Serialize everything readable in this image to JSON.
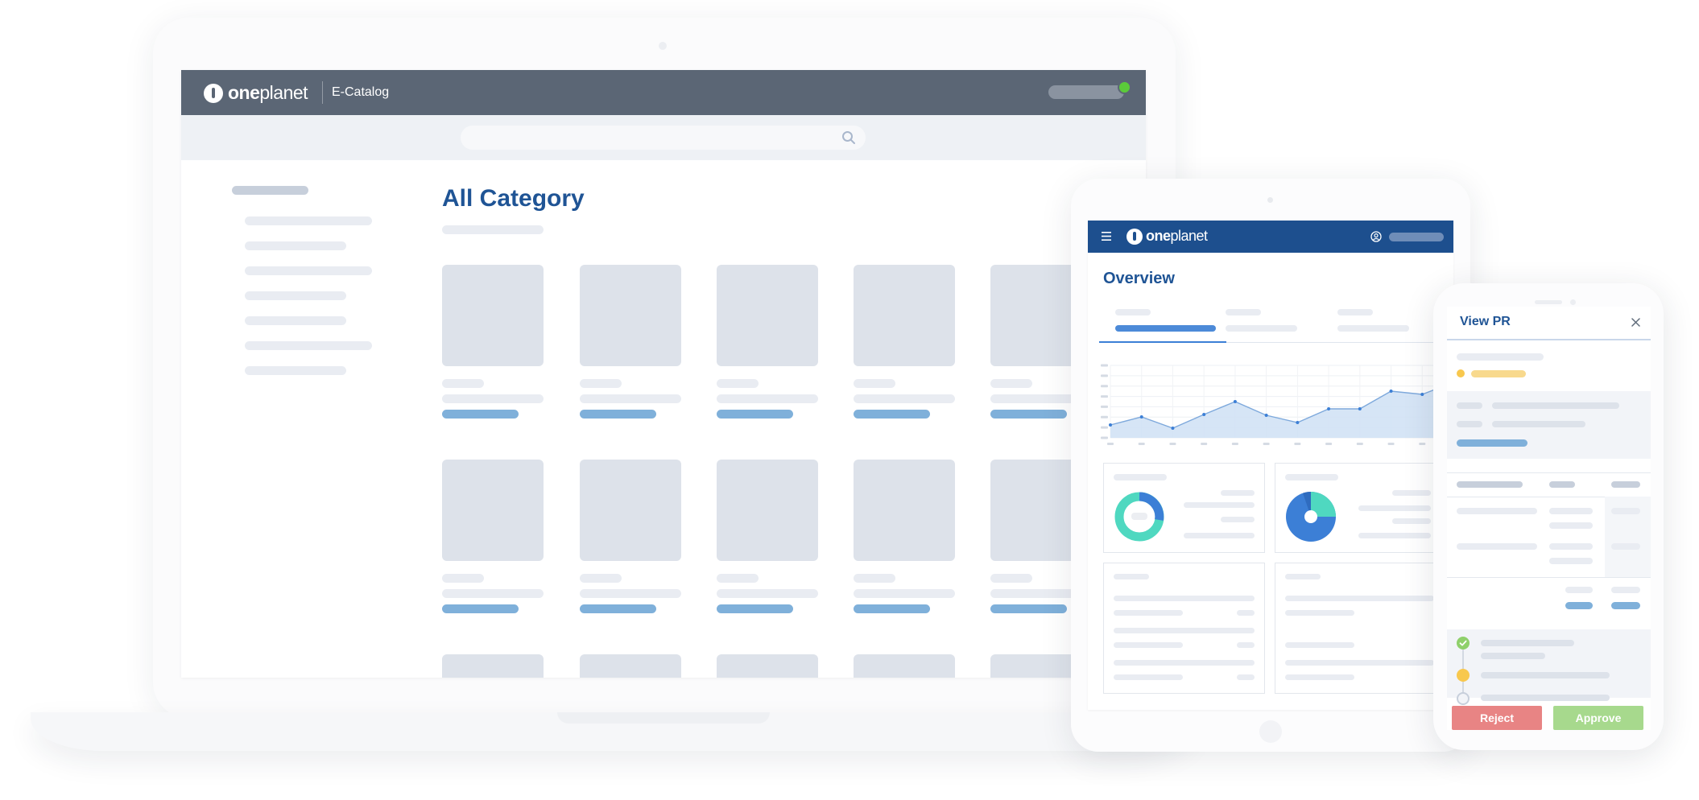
{
  "laptop": {
    "brand_bold": "one",
    "brand_light": "planet",
    "app_name": "E-Catalog",
    "search_placeholder": "",
    "page_title": "All Category"
  },
  "tablet": {
    "brand_bold": "one",
    "brand_light": "planet",
    "page_title": "Overview"
  },
  "phone": {
    "title": "View PR",
    "reject_label": "Reject",
    "approve_label": "Approve"
  },
  "colors": {
    "laptop_header": "#5b6675",
    "tablet_header": "#1d4f8e",
    "title_blue": "#1f5495",
    "accent_blue": "#3c7fd6",
    "teal": "#4fd8c0",
    "online_green": "#5bcb3a",
    "reject_red": "#e88484",
    "approve_green": "#a7d98d",
    "pending_gold": "#f8c84e"
  },
  "icons": [
    "search-icon",
    "menu-icon",
    "user-icon",
    "close-icon",
    "check-icon"
  ]
}
